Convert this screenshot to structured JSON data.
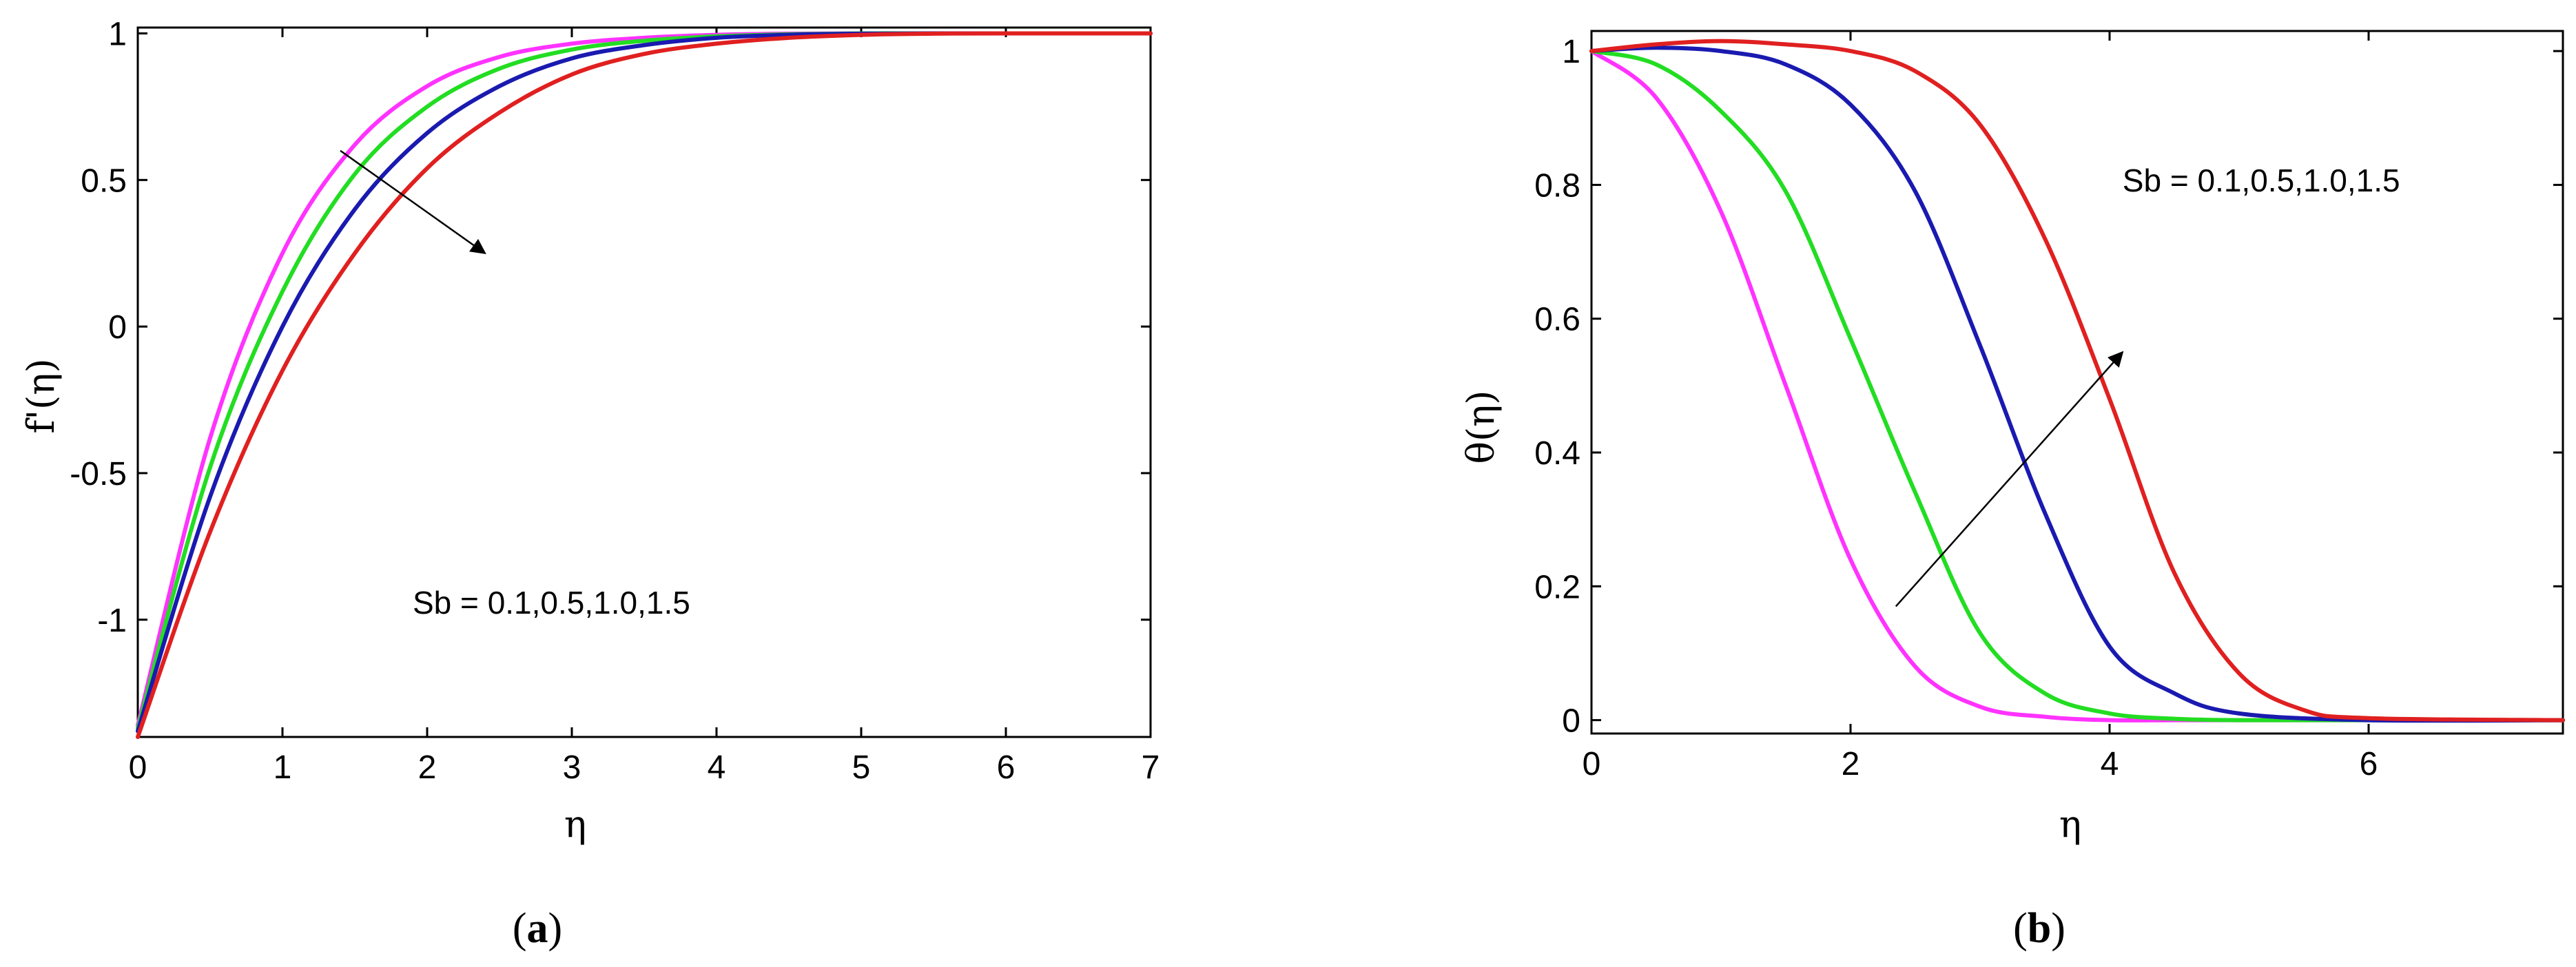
{
  "colors": {
    "magenta": "#ff33ff",
    "green": "#22dd22",
    "blue": "#1a1ab0",
    "red": "#e02020"
  },
  "chart_data": [
    {
      "id": "a",
      "type": "line",
      "caption_open": "(",
      "caption_letter": "a",
      "caption_close": ")",
      "ylabel": "f'(η)",
      "xlabel": "η",
      "xlim": [
        0,
        7
      ],
      "ylim": [
        -1.4,
        1.02
      ],
      "xticks": [
        0,
        1,
        2,
        3,
        4,
        5,
        6,
        7
      ],
      "yticks": [
        -1,
        -0.5,
        0,
        0.5,
        1
      ],
      "annotation": "Sb = 0.1,0.5,1.0,1.5",
      "series": [
        {
          "color": "magenta",
          "x": [
            0,
            0.5,
            1,
            1.5,
            2,
            2.5,
            3,
            3.5,
            4,
            4.5,
            5,
            5.5,
            6,
            7
          ],
          "y": [
            -1.36,
            -0.38,
            0.25,
            0.62,
            0.82,
            0.92,
            0.965,
            0.985,
            0.995,
            0.999,
            1.0,
            1.0,
            1.0,
            1.0
          ]
        },
        {
          "color": "green",
          "x": [
            0,
            0.5,
            1,
            1.5,
            2,
            2.5,
            3,
            3.5,
            4,
            4.5,
            5,
            5.5,
            6,
            7
          ],
          "y": [
            -1.37,
            -0.48,
            0.12,
            0.52,
            0.75,
            0.88,
            0.945,
            0.975,
            0.99,
            0.997,
            1.0,
            1.0,
            1.0,
            1.0
          ]
        },
        {
          "color": "blue",
          "x": [
            0,
            0.5,
            1,
            1.5,
            2,
            2.5,
            3,
            3.5,
            4,
            4.5,
            5,
            5.5,
            6,
            7
          ],
          "y": [
            -1.38,
            -0.58,
            0.0,
            0.4,
            0.66,
            0.82,
            0.915,
            0.96,
            0.985,
            0.995,
            0.999,
            1.0,
            1.0,
            1.0
          ]
        },
        {
          "color": "red",
          "x": [
            0,
            0.5,
            1,
            1.5,
            2,
            2.5,
            3,
            3.5,
            4,
            4.5,
            5,
            5.5,
            6,
            7
          ],
          "y": [
            -1.4,
            -0.7,
            -0.15,
            0.25,
            0.54,
            0.73,
            0.86,
            0.93,
            0.965,
            0.985,
            0.995,
            0.999,
            1.0,
            1.0
          ]
        }
      ],
      "arrow": {
        "from": [
          1.4,
          0.6
        ],
        "to": [
          2.4,
          0.25
        ]
      },
      "annotation_pos": [
        1.9,
        -0.98
      ]
    },
    {
      "id": "b",
      "type": "line",
      "caption_open": "(",
      "caption_letter": "b",
      "caption_close": ")",
      "ylabel": "θ(η)",
      "xlabel": "η",
      "xlim": [
        0,
        7.5
      ],
      "ylim": [
        -0.02,
        1.03
      ],
      "xticks": [
        0,
        2,
        4,
        6
      ],
      "yticks": [
        0,
        0.2,
        0.4,
        0.6,
        0.8,
        1
      ],
      "annotation": "Sb = 0.1,0.5,1.0,1.5",
      "series": [
        {
          "color": "magenta",
          "x": [
            0,
            0.5,
            1,
            1.5,
            2,
            2.5,
            3,
            3.5,
            4,
            4.5,
            5,
            6,
            7.5
          ],
          "y": [
            1.0,
            0.93,
            0.76,
            0.5,
            0.24,
            0.08,
            0.02,
            0.005,
            0.0,
            0.0,
            0.0,
            0.0,
            0.0
          ]
        },
        {
          "color": "green",
          "x": [
            0,
            0.5,
            1,
            1.5,
            2,
            2.5,
            3,
            3.5,
            4,
            4.5,
            5,
            6,
            7.5
          ],
          "y": [
            1.0,
            0.98,
            0.91,
            0.79,
            0.57,
            0.34,
            0.13,
            0.04,
            0.01,
            0.002,
            0.0,
            0.0,
            0.0
          ]
        },
        {
          "color": "blue",
          "x": [
            0,
            0.5,
            1,
            1.5,
            2,
            2.5,
            3,
            3.5,
            4,
            4.5,
            5,
            6,
            7.5
          ],
          "y": [
            1.0,
            1.005,
            1.0,
            0.98,
            0.92,
            0.79,
            0.56,
            0.31,
            0.11,
            0.04,
            0.01,
            0.0,
            0.0
          ]
        },
        {
          "color": "red",
          "x": [
            0,
            0.5,
            1,
            1.5,
            2,
            2.5,
            3,
            3.5,
            4,
            4.5,
            5,
            5.5,
            6,
            7.5
          ],
          "y": [
            1.0,
            1.01,
            1.015,
            1.01,
            1.0,
            0.97,
            0.89,
            0.72,
            0.48,
            0.22,
            0.07,
            0.015,
            0.003,
            0.0
          ]
        }
      ],
      "arrow": {
        "from": [
          2.35,
          0.17
        ],
        "to": [
          4.1,
          0.55
        ]
      },
      "annotation_pos": [
        4.1,
        0.79
      ]
    }
  ]
}
